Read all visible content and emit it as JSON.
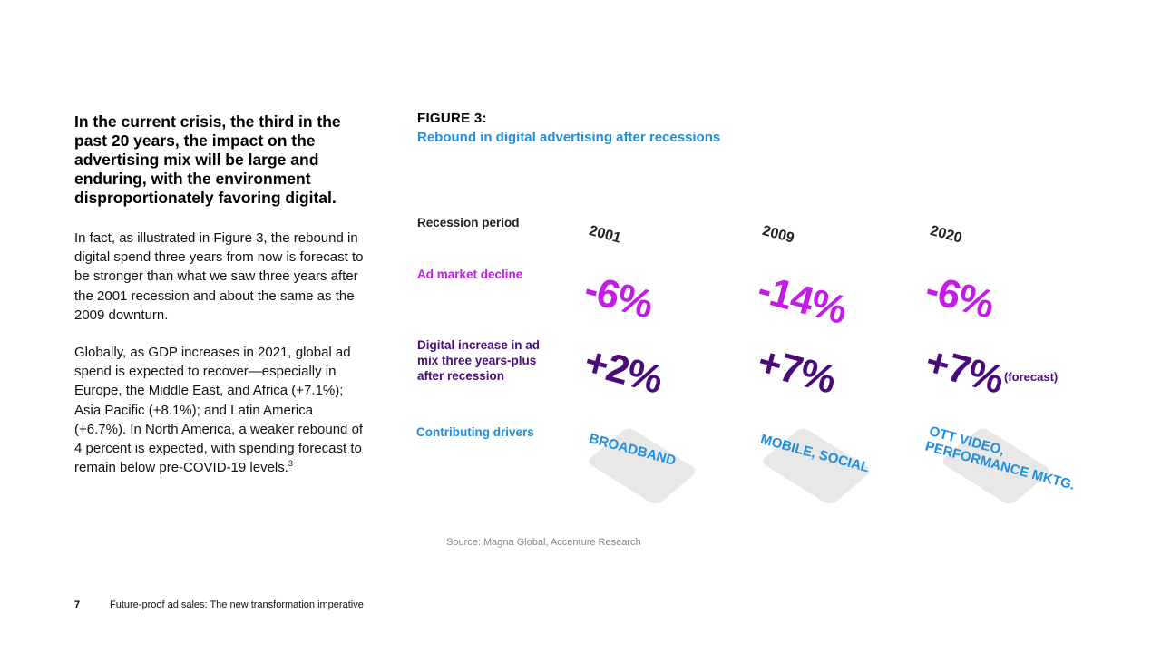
{
  "left": {
    "lead": "In the current crisis, the third in the past 20 years, the impact on the advertising mix will be large and enduring, with the environment disproportionately favoring digital.",
    "para1": "In fact, as illustrated in Figure 3, the rebound in digital spend three years from now is forecast to be stronger than what we saw three years after the 2001 recession and about the same as the 2009 downturn.",
    "para2": "Globally, as GDP increases in 2021, global ad spend is expected to recover—especially in Europe, the Middle East, and Africa (+7.1%); Asia Pacific (+8.1%); and Latin America (+6.7%). In North America, a weaker rebound of 4 percent is expected, with spending forecast to remain below pre-COVID-19 levels.",
    "para2_footnote": "3"
  },
  "figure": {
    "label": "FIGURE 3:",
    "title": "Rebound in digital advertising after recessions",
    "row_labels": {
      "period": "Recession period",
      "decline": "Ad market decline",
      "digital": "Digital increase in ad mix three years-plus after recession",
      "drivers": "Contributing drivers"
    },
    "columns": [
      {
        "year": "2001",
        "decline": "-6%",
        "digital": "+2%",
        "driver": "BROADBAND"
      },
      {
        "year": "2009",
        "decline": "-14%",
        "digital": "+7%",
        "driver": "MOBILE, SOCIAL"
      },
      {
        "year": "2020",
        "decline": "-6%",
        "digital": "+7%",
        "driver_line1": "OTT VIDEO,",
        "driver_line2": "PERFORMANCE MKTG."
      }
    ],
    "forecast_note": "(forecast)",
    "source": "Source: Magna Global, Accenture Research",
    "colors": {
      "decline": "#c21ce6",
      "digital": "#4a0a7a",
      "accent_blue": "#1f8fe0"
    }
  },
  "footer": {
    "page_number": "7",
    "title": "Future-proof ad sales: The new transformation imperative"
  }
}
